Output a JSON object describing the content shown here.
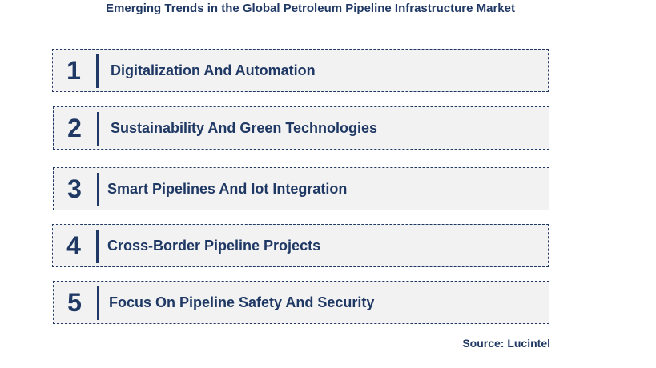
{
  "title": "Emerging Trends in the Global Petroleum Pipeline Infrastructure Market",
  "trends": [
    {
      "number": "1",
      "label": "Digitalization And Automation"
    },
    {
      "number": "2",
      "label": "Sustainability And Green Technologies"
    },
    {
      "number": "3",
      "label": "Smart Pipelines And Iot Integration"
    },
    {
      "number": "4",
      "label": "Cross-Border Pipeline Projects"
    },
    {
      "number": "5",
      "label": "Focus On Pipeline Safety And Security"
    }
  ],
  "source": "Source: Lucintel",
  "colors": {
    "primary": "#1f3864",
    "box_background": "#f2f2f2"
  }
}
